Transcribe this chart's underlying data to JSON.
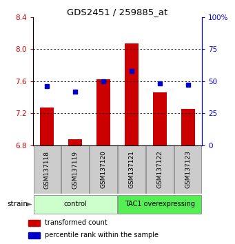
{
  "title": "GDS2451 / 259885_at",
  "samples": [
    "GSM137118",
    "GSM137119",
    "GSM137120",
    "GSM137121",
    "GSM137122",
    "GSM137123"
  ],
  "transformed_counts": [
    7.27,
    6.87,
    7.62,
    8.07,
    7.46,
    7.25
  ],
  "percentile_ranks": [
    46,
    42,
    50,
    58,
    48,
    47
  ],
  "ylim_left": [
    6.8,
    8.4
  ],
  "ylim_right": [
    0,
    100
  ],
  "yticks_left": [
    6.8,
    7.2,
    7.6,
    8.0,
    8.4
  ],
  "yticks_right": [
    0,
    25,
    50,
    75,
    100
  ],
  "ytick_labels_right": [
    "0",
    "25",
    "50",
    "75",
    "100%"
  ],
  "bar_color": "#cc0000",
  "dot_color": "#0000cc",
  "bar_bottom": 6.8,
  "grid_ticks": [
    7.2,
    7.6,
    8.0
  ],
  "groups": [
    {
      "label": "control",
      "start": 0,
      "end": 3,
      "color": "#ccffcc"
    },
    {
      "label": "TAC1 overexpressing",
      "start": 3,
      "end": 6,
      "color": "#55ee55"
    }
  ],
  "legend_items": [
    {
      "color": "#cc0000",
      "label": "transformed count"
    },
    {
      "color": "#0000cc",
      "label": "percentile rank within the sample"
    }
  ],
  "strain_label": "strain",
  "left_tick_color": "#cc0000",
  "right_tick_color": "#0000cc",
  "sample_box_color": "#cccccc",
  "bar_width": 0.5
}
